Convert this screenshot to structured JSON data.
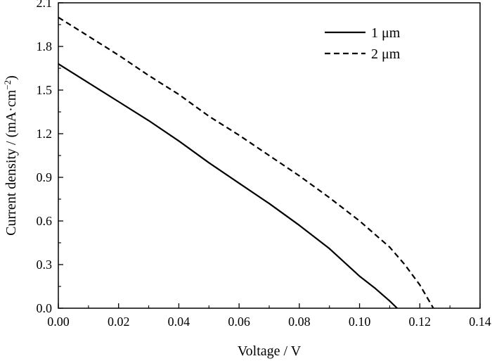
{
  "chart_data": {
    "type": "line",
    "xlabel": "Voltage / V",
    "ylabel_main": "Current density / (mA·cm",
    "ylabel_sup": "−2",
    "ylabel_close": ")",
    "xlim": [
      0.0,
      0.14
    ],
    "ylim": [
      0.0,
      2.1
    ],
    "x_ticks": [
      "0.00",
      "0.02",
      "0.04",
      "0.06",
      "0.08",
      "0.10",
      "0.12",
      "0.14"
    ],
    "y_ticks": [
      "0.0",
      "0.3",
      "0.6",
      "0.9",
      "1.2",
      "1.5",
      "1.8",
      "2.1"
    ],
    "legend_position": "top-right",
    "grid": false,
    "series": [
      {
        "name": "1 μm",
        "style": "solid",
        "x": [
          0.0,
          0.01,
          0.02,
          0.03,
          0.04,
          0.05,
          0.06,
          0.07,
          0.08,
          0.09,
          0.1,
          0.105,
          0.11,
          0.1125
        ],
        "y": [
          1.68,
          1.55,
          1.42,
          1.29,
          1.15,
          1.0,
          0.86,
          0.72,
          0.57,
          0.41,
          0.22,
          0.14,
          0.05,
          0.0
        ]
      },
      {
        "name": "2 μm",
        "style": "dashed",
        "x": [
          0.0,
          0.01,
          0.02,
          0.03,
          0.04,
          0.05,
          0.06,
          0.07,
          0.08,
          0.09,
          0.1,
          0.11,
          0.115,
          0.12,
          0.1245
        ],
        "y": [
          2.0,
          1.87,
          1.74,
          1.6,
          1.47,
          1.32,
          1.19,
          1.05,
          0.91,
          0.76,
          0.6,
          0.42,
          0.3,
          0.16,
          0.0
        ]
      }
    ]
  }
}
